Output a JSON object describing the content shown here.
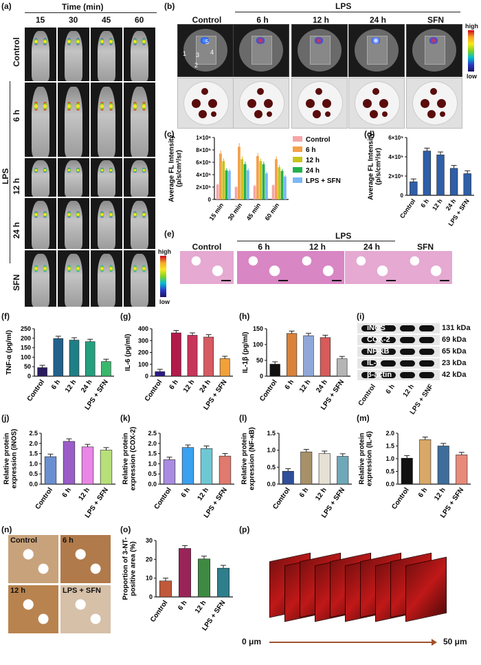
{
  "panel_labels": {
    "a": "(a)",
    "b": "(b)",
    "c": "(c)",
    "d": "(d)",
    "e": "(e)",
    "f": "(f)",
    "g": "(g)",
    "h": "(h)",
    "i": "(i)",
    "j": "(j)",
    "k": "(k)",
    "l": "(l)",
    "m": "(m)",
    "n": "(n)",
    "o": "(o)",
    "p": "(p)"
  },
  "panel_a": {
    "header": "Time (min)",
    "times": [
      "15",
      "30",
      "45",
      "60"
    ],
    "rows": [
      "Control",
      "6 h",
      "12 h",
      "24 h",
      "SFN"
    ],
    "group_label": "LPS",
    "cbar_high": "high",
    "cbar_low": "low"
  },
  "panel_b": {
    "group_label": "LPS",
    "columns": [
      "Control",
      "6 h",
      "12 h",
      "24 h",
      "SFN"
    ],
    "organ_numbers": [
      "1",
      "2",
      "3",
      "4",
      "5"
    ],
    "cbar_high": "high",
    "cbar_low": "low"
  },
  "panel_e": {
    "group_label": "LPS",
    "columns": [
      "Control",
      "6 h",
      "12 h",
      "24 h",
      "SFN"
    ]
  },
  "panel_i": {
    "bands": [
      {
        "name": "iNOS",
        "size": "131 kDa"
      },
      {
        "name": "COX-2",
        "size": "69 kDa"
      },
      {
        "name": "NF-κB",
        "size": "65 kDa"
      },
      {
        "name": "IL-6",
        "size": "23 kDa"
      },
      {
        "name": "β-actin",
        "size": "42 kDa"
      }
    ],
    "lanes": [
      "Control",
      "6 h",
      "12 h",
      "LPS + SNF"
    ]
  },
  "panel_n": {
    "labels": [
      "Control",
      "6 h",
      "12 h",
      "LPS + SFN"
    ]
  },
  "panel_p": {
    "start": "0 μm",
    "end": "50 μm"
  },
  "chart_data": [
    {
      "id": "c",
      "type": "bar",
      "ylabel": "Average FL Intensity\n(p/s/cm²/sr)",
      "categories": [
        "15 min",
        "30 min",
        "45 min",
        "60 min"
      ],
      "ylim": [
        0,
        1000000
      ],
      "yticks": [
        "0",
        "2×10⁵",
        "4×10⁵",
        "6×10⁵",
        "8×10⁵",
        "1×10⁶"
      ],
      "series": [
        {
          "name": "Control",
          "color": "#f4a6a6",
          "values": [
            240000,
            200000,
            220000,
            230000
          ]
        },
        {
          "name": "6 h",
          "color": "#f5a04a",
          "values": [
            740000,
            850000,
            700000,
            650000
          ]
        },
        {
          "name": "12 h",
          "color": "#c9c31a",
          "values": [
            620000,
            650000,
            620000,
            520000
          ]
        },
        {
          "name": "24 h",
          "color": "#23b14d",
          "values": [
            470000,
            570000,
            570000,
            460000
          ]
        },
        {
          "name": "LPS + SFN",
          "color": "#7ab8f5",
          "values": [
            460000,
            470000,
            420000,
            370000
          ]
        }
      ]
    },
    {
      "id": "d",
      "type": "bar",
      "ylabel": "Average FL Intensity\n(p/s/cm²/sr)",
      "categories": [
        "Control",
        "6 h",
        "12 h",
        "24 h",
        "LPS + SFN"
      ],
      "ylim": [
        0,
        600000
      ],
      "yticks": [
        "0",
        "2×10⁵",
        "4×10⁵",
        "6×10⁵"
      ],
      "values": [
        140000,
        460000,
        420000,
        280000,
        225000
      ],
      "colors": [
        "#2e5fa8",
        "#2e5fa8",
        "#2e5fa8",
        "#2e5fa8",
        "#2e5fa8"
      ]
    },
    {
      "id": "f",
      "type": "bar",
      "ylabel": "TNF-α (pg/ml)",
      "categories": [
        "Control",
        "6 h",
        "12 h",
        "24 h",
        "LPS + SFN"
      ],
      "ylim": [
        0,
        250
      ],
      "yticks": [
        "0",
        "50",
        "100",
        "150",
        "200",
        "250"
      ],
      "values": [
        45,
        198,
        190,
        182,
        77
      ],
      "colors": [
        "#2a1b5e",
        "#22618c",
        "#1f7f86",
        "#24a07e",
        "#39b86c"
      ]
    },
    {
      "id": "g",
      "type": "bar",
      "ylabel": "IL-6 (pg/ml)",
      "categories": [
        "Control",
        "6 h",
        "12 h",
        "24 h",
        "LPS + SFN"
      ],
      "ylim": [
        0,
        400
      ],
      "yticks": [
        "0",
        "100",
        "200",
        "300",
        "400"
      ],
      "values": [
        38,
        365,
        345,
        330,
        148
      ],
      "colors": [
        "#2a1b8a",
        "#b21a4a",
        "#c8355a",
        "#d65a62",
        "#f2a03a"
      ]
    },
    {
      "id": "h",
      "type": "bar",
      "ylabel": "IL-1β (pg/ml)",
      "categories": [
        "Control",
        "6 h",
        "12 h",
        "24 h",
        "LPS + SFN"
      ],
      "ylim": [
        0,
        150
      ],
      "yticks": [
        "0",
        "50",
        "100",
        "150"
      ],
      "values": [
        38,
        135,
        128,
        122,
        55
      ],
      "colors": [
        "#111111",
        "#d9823a",
        "#8fa8d8",
        "#d85a5a",
        "#b5b5b5"
      ]
    },
    {
      "id": "j",
      "type": "bar",
      "ylabel": "Relative protein\nexpression (iNOS)",
      "categories": [
        "Control",
        "6 h",
        "12 h",
        "LPS + SFN"
      ],
      "ylim": [
        0,
        2.5
      ],
      "yticks": [
        "0.0",
        "0.5",
        "1.0",
        "1.5",
        "2.0",
        "2.5"
      ],
      "values": [
        1.35,
        2.1,
        1.83,
        1.67
      ],
      "colors": [
        "#6a8fd0",
        "#9b5cc8",
        "#ea86e6",
        "#b7e07a"
      ]
    },
    {
      "id": "k",
      "type": "bar",
      "ylabel": "Relative protein\nexpression (COX-2)",
      "categories": [
        "Control",
        "6 h",
        "12 h",
        "LPS + SFN"
      ],
      "ylim": [
        0,
        2.5
      ],
      "yticks": [
        "0.0",
        "0.5",
        "1.0",
        "1.5",
        "2.0",
        "2.5"
      ],
      "values": [
        1.2,
        1.8,
        1.75,
        1.38
      ],
      "colors": [
        "#a98ce0",
        "#3aa0f0",
        "#6ec8d4",
        "#e07a6e"
      ]
    },
    {
      "id": "l",
      "type": "bar",
      "ylabel": "Relative protein\nexpression (NF-κB)",
      "categories": [
        "Control",
        "6 h",
        "12 h",
        "LPS + SFN"
      ],
      "ylim": [
        0,
        1.5
      ],
      "yticks": [
        "0.0",
        "0.5",
        "1.0",
        "1.5"
      ],
      "values": [
        0.38,
        0.95,
        0.9,
        0.82
      ],
      "colors": [
        "#2f4f9a",
        "#a89068",
        "#e6e0d4",
        "#6fa8b8"
      ]
    },
    {
      "id": "m",
      "type": "bar",
      "ylabel": "Relative protein\nexpression (IL-6)",
      "categories": [
        "Control",
        "6 h",
        "12 h",
        "LPS + SFN"
      ],
      "ylim": [
        0,
        2.0
      ],
      "yticks": [
        "0.0",
        "0.5",
        "1.0",
        "1.5",
        "2.0"
      ],
      "values": [
        1.02,
        1.75,
        1.5,
        1.15
      ],
      "colors": [
        "#111111",
        "#d8a868",
        "#3e6d9c",
        "#e88a7a"
      ]
    },
    {
      "id": "o",
      "type": "bar",
      "ylabel": "Proportion of 3-NT-\npositive area (%)",
      "categories": [
        "Control",
        "6 h",
        "12 h",
        "LPS + SFN"
      ],
      "ylim": [
        0,
        30
      ],
      "yticks": [
        "0",
        "10",
        "20",
        "30"
      ],
      "values": [
        8.5,
        25.8,
        20.2,
        15.3
      ],
      "colors": [
        "#c0593a",
        "#9a2458",
        "#3e8a42",
        "#2f7e8c"
      ]
    }
  ]
}
